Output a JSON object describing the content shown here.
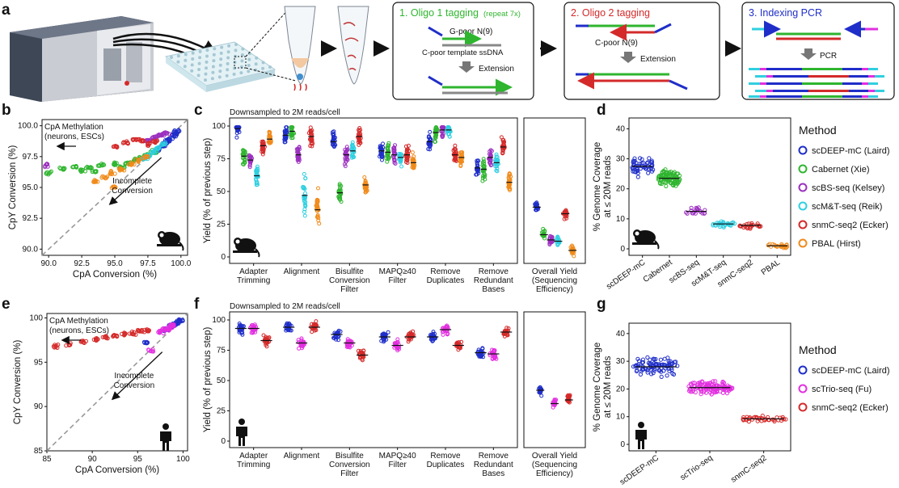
{
  "panel_labels": {
    "a": "a",
    "b": "b",
    "c": "c",
    "d": "d",
    "e": "e",
    "f": "f",
    "g": "g"
  },
  "panel_a": {
    "step1": {
      "title": "1. Oligo 1 tagging",
      "note": "(repeat 7x)",
      "gpoor": "G-poor N(9)",
      "cpoor": "C-poor template ssDNA",
      "extension": "Extension"
    },
    "step2": {
      "title": "2. Oligo 2 tagging",
      "cpoor": "C-poor N(9)",
      "extension": "Extension"
    },
    "step3": {
      "title": "3. Indexing PCR",
      "pcr": "PCR"
    }
  },
  "panel_b": {
    "xlabel": "CpA Conversion (%)",
    "ylabel": "CpY Conversion (%)",
    "xticks": [
      "90.0",
      "92.5",
      "95.0",
      "97.5",
      "100.0"
    ],
    "yticks": [
      "90.0",
      "92.5",
      "95.0",
      "97.5",
      "100.0"
    ],
    "ann_methyl_1": "CpA Methylation",
    "ann_methyl_2": "(neurons, ESCs)",
    "ann_incomplete_1": "Incomplete",
    "ann_incomplete_2": "Conversion"
  },
  "panel_e": {
    "xlabel": "CpA Conversion (%)",
    "ylabel": "CpY Conversion (%)",
    "xticks": [
      "85",
      "90",
      "95",
      "100"
    ],
    "yticks": [
      "85",
      "90",
      "95",
      "100"
    ],
    "ann_methyl_1": "CpA Methylation",
    "ann_methyl_2": "(neurons, ESCs)",
    "ann_incomplete_1": "Incomplete",
    "ann_incomplete_2": "Conversion"
  },
  "panel_c": {
    "title": "Downsampled to 2M reads/cell",
    "ylabel": "Yield (% of previous step)",
    "yticks": [
      "0",
      "25",
      "50",
      "75",
      "100"
    ],
    "categories": [
      [
        "Adapter",
        "Trimming"
      ],
      [
        "Alignment"
      ],
      [
        "Bisulfite",
        "Conversion",
        "Filter"
      ],
      [
        "MAPQ≥40",
        "Filter"
      ],
      [
        "Remove",
        "Duplicates"
      ],
      [
        "Remove",
        "Redundant",
        "Bases"
      ]
    ],
    "overall": [
      "Overall Yield",
      "(Sequencing",
      "Efficiency)"
    ]
  },
  "panel_f": {
    "title": "Downsampled to 2M reads/cell",
    "ylabel": "Yield (% of previous step)",
    "yticks": [
      "0",
      "25",
      "50",
      "75",
      "100"
    ],
    "categories": [
      [
        "Adapter",
        "Trimming"
      ],
      [
        "Alignment"
      ],
      [
        "Bisulfite",
        "Conversion",
        "Filter"
      ],
      [
        "MAPQ≥40",
        "Filter"
      ],
      [
        "Remove",
        "Duplicates"
      ],
      [
        "Remove",
        "Redundant",
        "Bases"
      ]
    ],
    "overall": [
      "Overall Yield",
      "(Sequencing",
      "Efficiency)"
    ]
  },
  "panel_d": {
    "ylabel_1": "% Genome Coverage",
    "ylabel_2": "at ≤ 20M reads",
    "yticks": [
      "0",
      "10",
      "20",
      "30",
      "40"
    ],
    "categories": [
      "scDEEP-mC",
      "Cabernet",
      "scBS-seq",
      "scM&T-seq",
      "snmC-seq2",
      "PBAL"
    ]
  },
  "panel_g": {
    "ylabel_1": "% Genome Coverage",
    "ylabel_2": "at ≤ 20M reads",
    "yticks": [
      "0",
      "10",
      "20",
      "30",
      "40"
    ],
    "categories": [
      "scDEEP-mC",
      "scTrio-seq",
      "snmC-seq2"
    ]
  },
  "legend_mouse": {
    "title": "Method",
    "items": [
      {
        "label": "scDEEP-mC (Laird)",
        "color": "#1f2ec8"
      },
      {
        "label": "Cabernet (Xie)",
        "color": "#2fb52f"
      },
      {
        "label": "scBS-seq (Kelsey)",
        "color": "#9b2fbf"
      },
      {
        "label": "scM&T-seq (Reik)",
        "color": "#2fcfe0"
      },
      {
        "label": "snmC-seq2 (Ecker)",
        "color": "#d42a2a"
      },
      {
        "label": "PBAL (Hirst)",
        "color": "#f08a1a"
      }
    ]
  },
  "legend_human": {
    "title": "Method",
    "items": [
      {
        "label": "scDEEP-mC (Laird)",
        "color": "#1f2ec8"
      },
      {
        "label": "scTrio-seq (Fu)",
        "color": "#e22fe0"
      },
      {
        "label": "snmC-seq2 (Ecker)",
        "color": "#d42a2a"
      }
    ]
  },
  "chart_data": [
    {
      "panel": "b",
      "type": "scatter",
      "xlabel": "CpA Conversion (%)",
      "ylabel": "CpY Conversion (%)",
      "xlim": [
        89.5,
        100.5
      ],
      "ylim": [
        89.5,
        100.5
      ],
      "series": [
        {
          "name": "scDEEP-mC (Laird)",
          "color": "#1f2ec8",
          "x": [
            98.2,
            98.8,
            99.1,
            99.4,
            99.6,
            99.7,
            99.0,
            98.6
          ],
          "y": [
            98.0,
            98.6,
            98.9,
            99.2,
            99.4,
            99.5,
            98.8,
            98.3
          ]
        },
        {
          "name": "Cabernet (Xie)",
          "color": "#2fb52f",
          "x": [
            90.0,
            91.0,
            92.0,
            93.0,
            94.0,
            95.0,
            96.0,
            96.5,
            97.0,
            97.5,
            98.0,
            92.5,
            95.5,
            93.5
          ],
          "y": [
            96.2,
            96.5,
            96.7,
            96.6,
            96.8,
            96.9,
            97.0,
            97.2,
            97.4,
            97.6,
            97.9,
            96.4,
            96.6,
            96.3
          ]
        },
        {
          "name": "scBS-seq (Kelsey)",
          "color": "#9b2fbf",
          "x": [
            89.8,
            97.5,
            98.0,
            98.3,
            98.6,
            98.9
          ],
          "y": [
            96.8,
            98.8,
            99.0,
            99.2,
            99.3,
            99.4
          ]
        },
        {
          "name": "scM&T-seq (Reik)",
          "color": "#2fcfe0",
          "x": [
            97.2,
            97.6,
            98.0,
            98.3,
            98.7
          ],
          "y": [
            97.3,
            97.6,
            97.9,
            98.2,
            98.5
          ]
        },
        {
          "name": "snmC-seq2 (Ecker)",
          "color": "#d42a2a",
          "x": [
            95.0,
            95.8,
            96.5,
            97.0,
            97.6,
            98.0
          ],
          "y": [
            98.3,
            98.6,
            98.9,
            98.8,
            98.5,
            98.7
          ]
        },
        {
          "name": "PBAL (Hirst)",
          "color": "#f08a1a",
          "x": [
            93.5,
            94.2,
            94.8,
            95.5,
            96.2,
            96.8,
            97.4,
            95.0
          ],
          "y": [
            95.5,
            95.8,
            96.2,
            96.5,
            96.9,
            97.2,
            97.5,
            95.0
          ]
        }
      ]
    },
    {
      "panel": "e",
      "type": "scatter",
      "xlabel": "CpA Conversion (%)",
      "ylabel": "CpY Conversion (%)",
      "xlim": [
        85,
        100.5
      ],
      "ylim": [
        85,
        100.5
      ],
      "series": [
        {
          "name": "scDEEP-mC (Laird)",
          "color": "#1f2ec8",
          "x": [
            96.0,
            98.0,
            98.6,
            99.0,
            99.3,
            99.6,
            99.8
          ],
          "y": [
            97.2,
            98.6,
            99.0,
            99.2,
            99.4,
            99.6,
            99.7
          ]
        },
        {
          "name": "scTrio-seq (Fu)",
          "color": "#e22fe0",
          "x": [
            97.5,
            98.0,
            98.3,
            98.6,
            98.9,
            96.5
          ],
          "y": [
            98.4,
            98.7,
            98.8,
            99.0,
            99.2,
            96.3
          ]
        },
        {
          "name": "snmC-seq2 (Ecker)",
          "color": "#d42a2a",
          "x": [
            86.0,
            87.5,
            89.0,
            90.5,
            91.5,
            92.5,
            93.5,
            94.5,
            95.2,
            96.0
          ],
          "y": [
            96.8,
            97.0,
            97.3,
            97.6,
            97.8,
            98.0,
            98.2,
            98.3,
            98.5,
            98.6
          ]
        }
      ]
    },
    {
      "panel": "c",
      "type": "scatter",
      "ylabel": "Yield (% of previous step)",
      "ylim": [
        0,
        100
      ],
      "categories": [
        "Adapter Trimming",
        "Alignment",
        "Bisulfite Conversion Filter",
        "MAPQ≥40 Filter",
        "Remove Duplicates",
        "Remove Redundant Bases"
      ],
      "series": [
        {
          "name": "scDEEP-mC (Laird)",
          "color": "#1f2ec8",
          "medians": [
            98,
            93,
            88,
            81,
            88,
            68
          ],
          "overall": 38
        },
        {
          "name": "Cabernet (Xie)",
          "color": "#2fb52f",
          "medians": [
            77,
            96,
            49,
            80,
            95,
            67
          ],
          "overall": 17
        },
        {
          "name": "scBS-seq (Kelsey)",
          "color": "#9b2fbf",
          "medians": [
            74,
            78,
            78,
            78,
            97,
            76
          ],
          "overall": 13
        },
        {
          "name": "scM&T-seq (Reik)",
          "color": "#2fcfe0",
          "medians": [
            62,
            47,
            81,
            76,
            97,
            72
          ],
          "overall": 12
        },
        {
          "name": "snmC-seq2 (Ecker)",
          "color": "#d42a2a",
          "medians": [
            85,
            92,
            92,
            78,
            78,
            84
          ],
          "overall": 33
        },
        {
          "name": "PBAL (Hirst)",
          "color": "#f08a1a",
          "medians": [
            90,
            36,
            55,
            72,
            76,
            57
          ],
          "overall": 5
        }
      ]
    },
    {
      "panel": "f",
      "type": "scatter",
      "ylabel": "Yield (% of previous step)",
      "ylim": [
        0,
        100
      ],
      "categories": [
        "Adapter Trimming",
        "Alignment",
        "Bisulfite Conversion Filter",
        "MAPQ≥40 Filter",
        "Remove Duplicates",
        "Remove Redundant Bases"
      ],
      "series": [
        {
          "name": "scDEEP-mC (Laird)",
          "color": "#1f2ec8",
          "medians": [
            93,
            94,
            88,
            86,
            86,
            73
          ],
          "overall": 42
        },
        {
          "name": "scTrio-seq (Fu)",
          "color": "#e22fe0",
          "medians": [
            93,
            81,
            81,
            79,
            92,
            72
          ],
          "overall": 31
        },
        {
          "name": "snmC-seq2 (Ecker)",
          "color": "#d42a2a",
          "medians": [
            83,
            94,
            71,
            86,
            79,
            90
          ],
          "overall": 34
        }
      ]
    },
    {
      "panel": "d",
      "type": "scatter",
      "ylabel": "% Genome Coverage at ≤ 20M reads",
      "ylim": [
        0,
        42
      ],
      "categories": [
        "scDEEP-mC",
        "Cabernet",
        "scBS-seq",
        "scM&T-seq",
        "snmC-seq2",
        "PBAL"
      ],
      "medians": [
        27.5,
        23.5,
        12.5,
        8.3,
        7.8,
        1.0
      ]
    },
    {
      "panel": "g",
      "type": "scatter",
      "ylabel": "% Genome Coverage at ≤ 20M reads",
      "ylim": [
        0,
        42
      ],
      "categories": [
        "scDEEP-mC",
        "scTrio-seq",
        "snmC-seq2"
      ],
      "medians": [
        28,
        20.5,
        9.2
      ]
    }
  ]
}
